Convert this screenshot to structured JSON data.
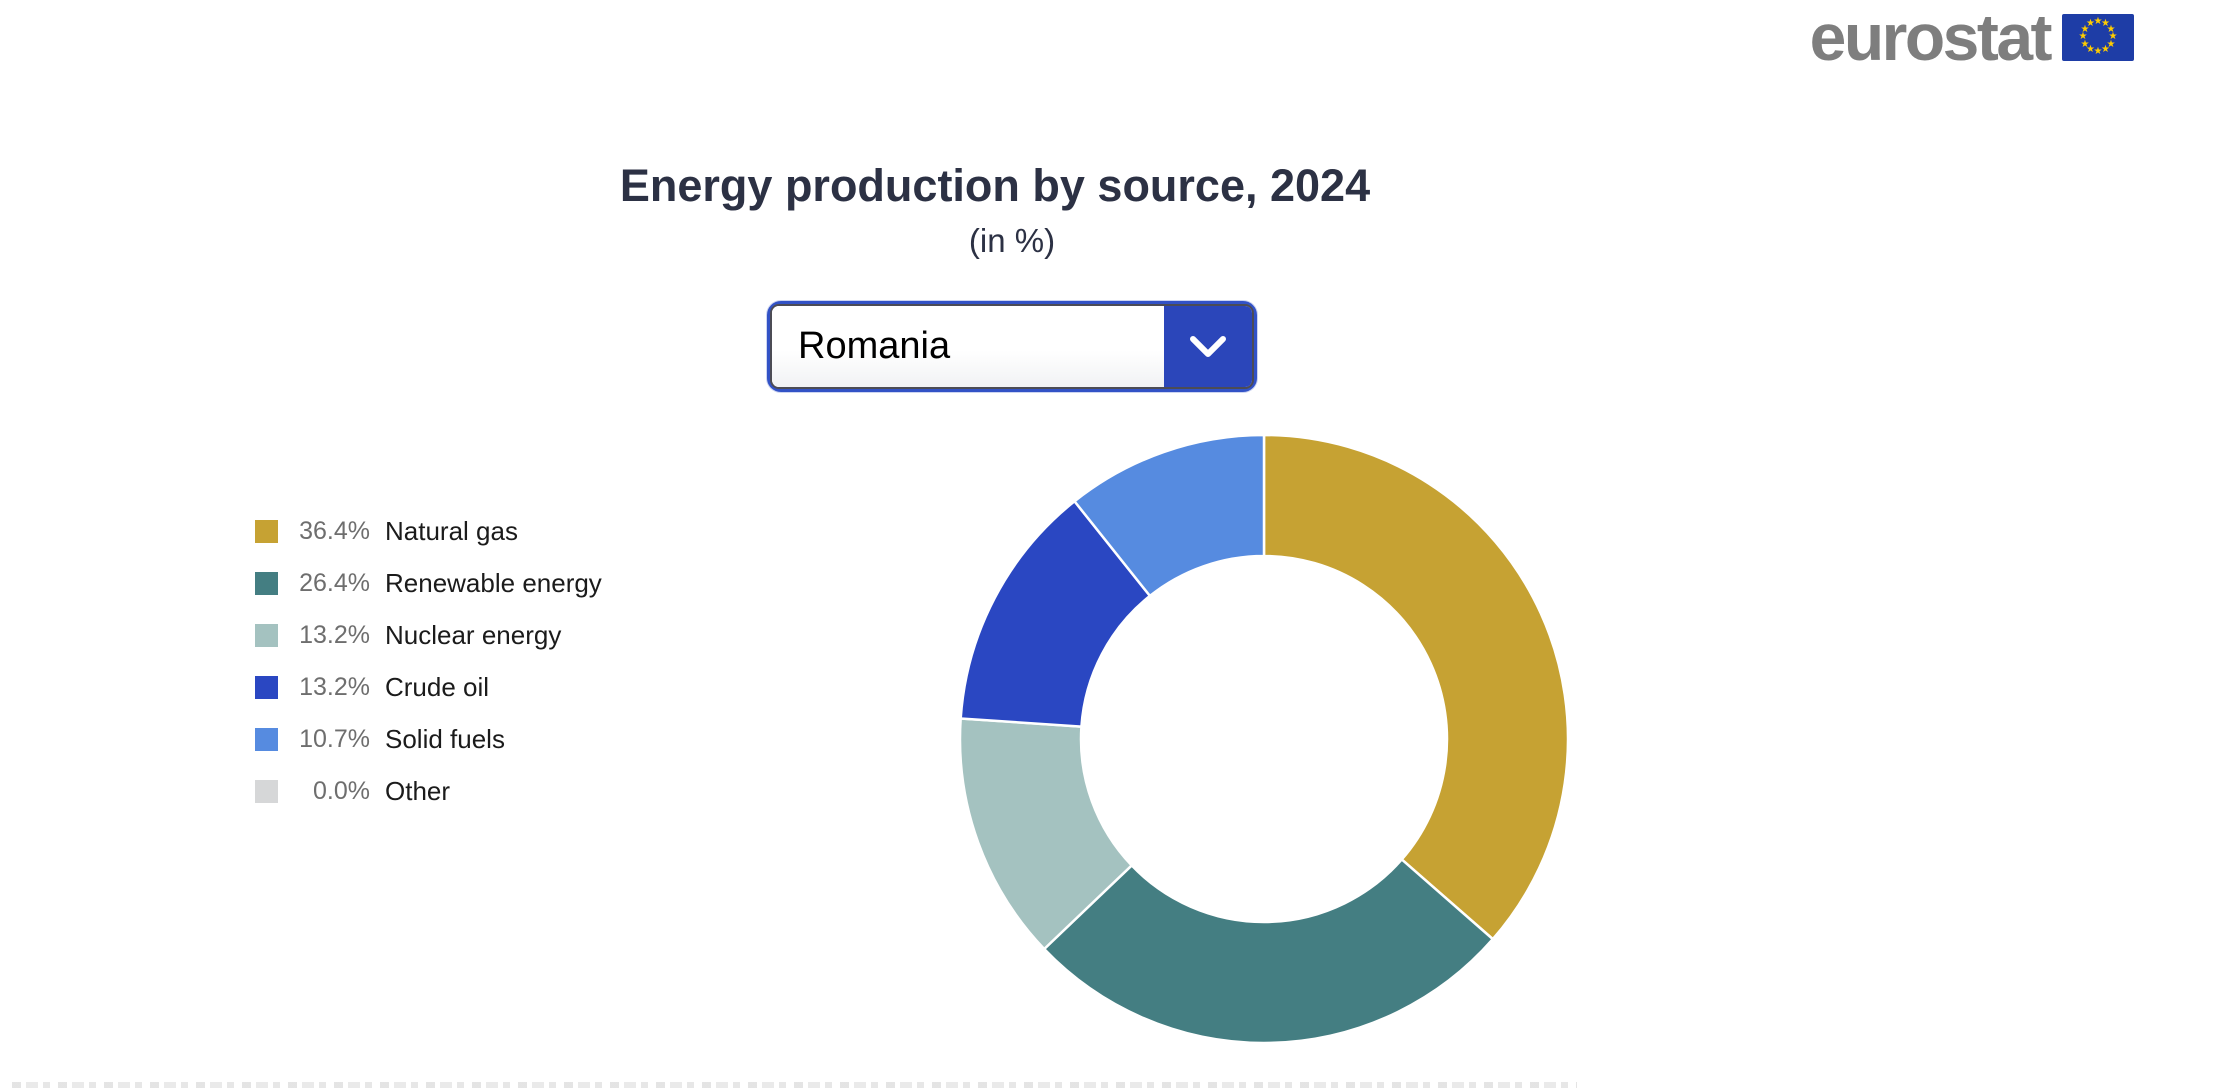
{
  "header": {
    "logo_text": "eurostat",
    "logo_flag_icon": "eu-flag-icon"
  },
  "chart": {
    "title": "Energy production by source, 2024",
    "subtitle": "(in %)",
    "country_selector": {
      "value": "Romania",
      "chevron_icon": "chevron-down-icon"
    }
  },
  "chart_data": {
    "type": "pie",
    "variant": "donut",
    "title": "Energy production by source, 2024",
    "subtitle": "(in %)",
    "country": "Romania",
    "unit": "%",
    "legend_position": "left",
    "start_angle_deg": 0,
    "direction": "clockwise",
    "slices": [
      {
        "label": "Natural gas",
        "value": 36.4,
        "display": "36.4%",
        "color": "#c6a233"
      },
      {
        "label": "Renewable energy",
        "value": 26.4,
        "display": "26.4%",
        "color": "#447e82"
      },
      {
        "label": "Nuclear energy",
        "value": 13.2,
        "display": "13.2%",
        "color": "#a4c2c0"
      },
      {
        "label": "Crude oil",
        "value": 13.2,
        "display": "13.2%",
        "color": "#2a47c2"
      },
      {
        "label": "Solid fuels",
        "value": 10.7,
        "display": "10.7%",
        "color": "#568be0"
      },
      {
        "label": "Other",
        "value": 0.0,
        "display": "0.0%",
        "color": "#d6d7d8"
      }
    ]
  },
  "colors": {
    "accent_blue": "#2b46ba",
    "selector_border_blue": "#3252c6",
    "title_text": "#2c3144",
    "legend_percent_text": "#6e6e6e",
    "legend_label_text": "#1b1b1b",
    "logo_gray": "#7e7e7e",
    "flag_blue": "#1e3da6",
    "flag_star_yellow": "#ffcc00"
  }
}
